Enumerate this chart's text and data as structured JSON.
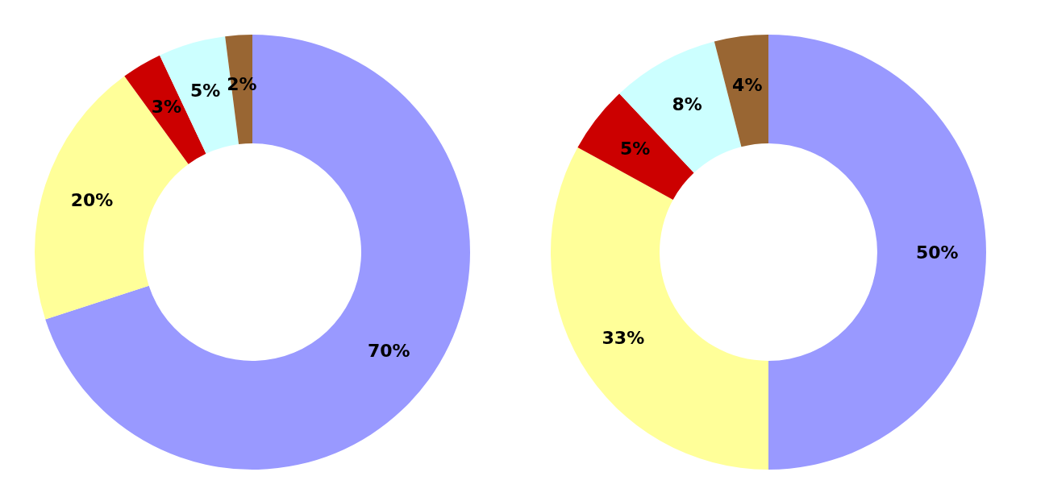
{
  "chart_data": [
    {
      "type": "donut",
      "categories": [
        null,
        null,
        null,
        null,
        null
      ],
      "values": [
        70,
        20,
        3,
        5,
        2
      ],
      "colors": [
        "#9999ff",
        "#ffff99",
        "#cc0000",
        "#ccffff",
        "#996633"
      ],
      "value_labels": [
        "70%",
        "20%",
        "3%",
        "5%",
        "2%"
      ],
      "legend": false
    },
    {
      "type": "donut",
      "categories": [
        null,
        null,
        null,
        null,
        null
      ],
      "values": [
        50,
        33,
        5,
        8,
        4
      ],
      "colors": [
        "#9999ff",
        "#ffff99",
        "#cc0000",
        "#ccffff",
        "#996633"
      ],
      "value_labels": [
        "50%",
        "33%",
        "5%",
        "8%",
        "4%"
      ],
      "legend": false
    }
  ]
}
